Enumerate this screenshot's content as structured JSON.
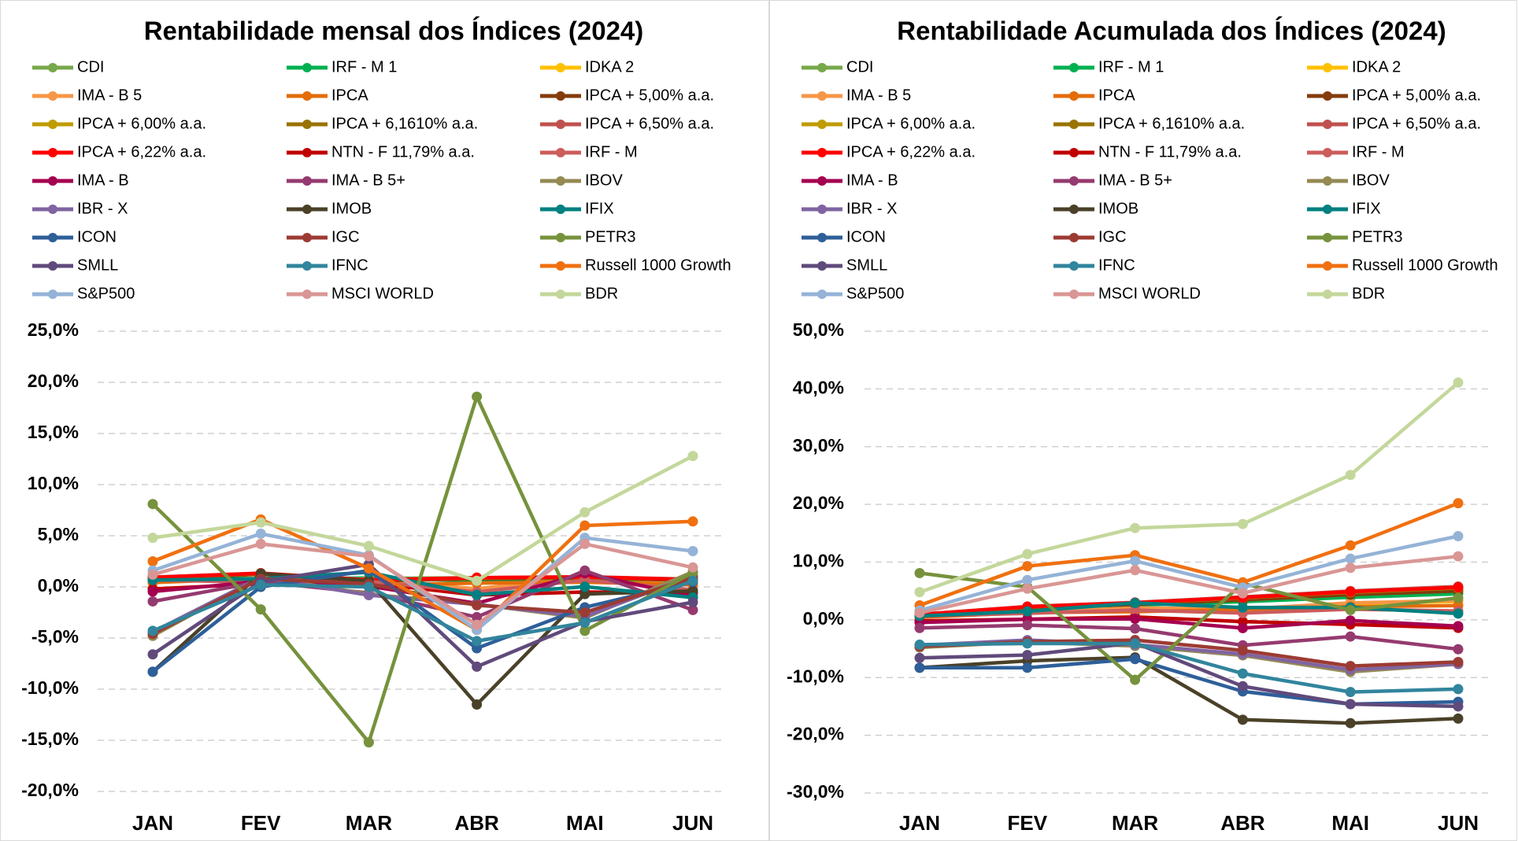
{
  "chart_data": [
    {
      "type": "line",
      "title": "Rentabilidade mensal dos Índices (2024)",
      "categories": [
        "JAN",
        "FEV",
        "MAR",
        "ABR",
        "MAI",
        "JUN"
      ],
      "ylim": [
        -20,
        25
      ],
      "yticks": [
        {
          "value": -20,
          "label": "-20,0%"
        },
        {
          "value": -15,
          "label": "-15,0%"
        },
        {
          "value": -10,
          "label": "-10,0%"
        },
        {
          "value": -5,
          "label": "-5,0%"
        },
        {
          "value": 0,
          "label": "0,0%"
        },
        {
          "value": 5,
          "label": "5,0%"
        },
        {
          "value": 10,
          "label": "10,0%"
        },
        {
          "value": 15,
          "label": "15,0%"
        },
        {
          "value": 20,
          "label": "20,0%"
        },
        {
          "value": 25,
          "label": "25,0%"
        }
      ],
      "grid": true,
      "series": [
        {
          "name": "CDI",
          "color": "#77a84a",
          "values": [
            0.97,
            0.8,
            0.83,
            0.89,
            0.83,
            0.79
          ]
        },
        {
          "name": "IRF - M 1",
          "color": "#00b050",
          "values": [
            0.85,
            0.79,
            0.87,
            0.6,
            0.72,
            0.6
          ]
        },
        {
          "name": "IDKA 2",
          "color": "#ffc000",
          "values": [
            0.6,
            0.8,
            0.6,
            -0.2,
            1.0,
            0.4
          ]
        },
        {
          "name": "IMA - B 5",
          "color": "#f79646",
          "values": [
            0.68,
            0.59,
            0.77,
            -0.2,
            1.05,
            0.39
          ]
        },
        {
          "name": "IPCA",
          "color": "#e46c0a",
          "values": [
            0.42,
            0.83,
            0.16,
            0.38,
            0.46,
            0.21
          ]
        },
        {
          "name": "IPCA + 5,00% a.a.",
          "color": "#843c0c",
          "values": [
            0.83,
            1.23,
            0.57,
            0.79,
            0.87,
            0.62
          ]
        },
        {
          "name": "IPCA + 6,00% a.a.",
          "color": "#c09b00",
          "values": [
            0.91,
            1.31,
            0.65,
            0.87,
            0.95,
            0.7
          ]
        },
        {
          "name": "IPCA + 6,1610% a.a.",
          "color": "#997300",
          "values": [
            0.92,
            1.32,
            0.66,
            0.88,
            0.96,
            0.71
          ]
        },
        {
          "name": "IPCA + 6,50% a.a.",
          "color": "#c0504d",
          "values": [
            0.95,
            1.35,
            0.69,
            0.91,
            0.99,
            0.74
          ]
        },
        {
          "name": "IPCA + 6,22% a.a.",
          "color": "#ff0000",
          "values": [
            0.93,
            1.33,
            0.67,
            0.89,
            0.97,
            0.72
          ]
        },
        {
          "name": "NTN - F 11,79% a.a.",
          "color": "#c00000",
          "values": [
            -0.2,
            0.3,
            0.4,
            -0.8,
            -0.5,
            -0.6
          ]
        },
        {
          "name": "IRF - M",
          "color": "#cd5c5c",
          "values": [
            0.67,
            0.46,
            0.54,
            -0.5,
            0.66,
            -0.3
          ]
        },
        {
          "name": "IMA - B",
          "color": "#a50050",
          "values": [
            -0.45,
            0.55,
            0.08,
            -1.61,
            1.33,
            -0.97
          ]
        },
        {
          "name": "IMA - B 5+",
          "color": "#953a6f",
          "values": [
            -1.42,
            0.51,
            -0.6,
            -2.95,
            1.6,
            -2.26
          ]
        },
        {
          "name": "IBOV",
          "color": "#948a54",
          "values": [
            -4.79,
            0.99,
            -0.71,
            -1.7,
            -3.04,
            1.48
          ]
        },
        {
          "name": "IBR - X",
          "color": "#8064a2",
          "values": [
            -4.4,
            0.93,
            -0.81,
            -1.71,
            -2.9,
            1.1
          ]
        },
        {
          "name": "IMOB",
          "color": "#4a4128",
          "values": [
            -8.3,
            1.3,
            0.6,
            -11.5,
            -0.7,
            -0.4
          ]
        },
        {
          "name": "IFIX",
          "color": "#008080",
          "values": [
            0.67,
            0.79,
            1.43,
            -0.77,
            0.02,
            -1.04
          ]
        },
        {
          "name": "ICON",
          "color": "#2e5f99",
          "values": [
            -8.3,
            0.0,
            1.6,
            -6.0,
            -2.0,
            0.5
          ]
        },
        {
          "name": "IGC",
          "color": "#9c3b33",
          "values": [
            -4.6,
            0.8,
            0.3,
            -1.8,
            -2.5,
            0.9
          ]
        },
        {
          "name": "PETR3",
          "color": "#76923c",
          "values": [
            8.1,
            -2.2,
            -15.2,
            18.6,
            -4.3,
            1.4
          ]
        },
        {
          "name": "SMLL",
          "color": "#604a7b",
          "values": [
            -6.6,
            0.5,
            2.2,
            -7.8,
            -3.4,
            -1.5
          ]
        },
        {
          "name": "IFNC",
          "color": "#31859c",
          "values": [
            -4.3,
            0.2,
            0.0,
            -5.3,
            -3.5,
            0.6
          ]
        },
        {
          "name": "Russell 1000 Growth",
          "color": "#f07010",
          "values": [
            2.5,
            6.6,
            1.8,
            -4.2,
            6.0,
            6.4
          ]
        },
        {
          "name": "S&P500",
          "color": "#95b3d7",
          "values": [
            1.6,
            5.2,
            3.1,
            -4.2,
            4.8,
            3.5
          ]
        },
        {
          "name": "MSCI WORLD",
          "color": "#d99694",
          "values": [
            1.2,
            4.2,
            3.0,
            -3.7,
            4.2,
            1.9
          ]
        },
        {
          "name": "BDR",
          "color": "#c4d79b",
          "values": [
            4.8,
            6.3,
            4.0,
            0.6,
            7.3,
            12.8
          ]
        }
      ]
    },
    {
      "type": "line",
      "title": "Rentabilidade Acumulada dos Índices (2024)",
      "categories": [
        "JAN",
        "FEV",
        "MAR",
        "ABR",
        "MAI",
        "JUN"
      ],
      "ylim": [
        -30,
        50
      ],
      "yticks": [
        {
          "value": -30,
          "label": "-30,0%"
        },
        {
          "value": -20,
          "label": "-20,0%"
        },
        {
          "value": -10,
          "label": "-10,0%"
        },
        {
          "value": 0,
          "label": "0,0%"
        },
        {
          "value": 10,
          "label": "10,0%"
        },
        {
          "value": 20,
          "label": "20,0%"
        },
        {
          "value": 30,
          "label": "30,0%"
        },
        {
          "value": 40,
          "label": "40,0%"
        },
        {
          "value": 50,
          "label": "50,0%"
        }
      ],
      "grid": true,
      "series": [
        {
          "name": "CDI",
          "color": "#77a84a",
          "values": [
            0.97,
            1.78,
            2.62,
            3.54,
            4.4,
            5.22
          ]
        },
        {
          "name": "IRF - M 1",
          "color": "#00b050",
          "values": [
            0.85,
            1.65,
            2.53,
            3.15,
            3.89,
            4.51
          ]
        },
        {
          "name": "IDKA 2",
          "color": "#ffc000",
          "values": [
            0.6,
            1.4,
            2.0,
            1.8,
            2.8,
            3.2
          ]
        },
        {
          "name": "IMA - B 5",
          "color": "#f79646",
          "values": [
            0.68,
            1.27,
            2.06,
            1.86,
            2.93,
            3.33
          ]
        },
        {
          "name": "IPCA",
          "color": "#e46c0a",
          "values": [
            0.42,
            1.25,
            1.41,
            1.8,
            2.27,
            2.48
          ]
        },
        {
          "name": "IPCA + 5,00% a.a.",
          "color": "#843c0c",
          "values": [
            0.83,
            2.07,
            2.65,
            3.46,
            4.36,
            5.01
          ]
        },
        {
          "name": "IPCA + 6,00% a.a.",
          "color": "#c09b00",
          "values": [
            0.91,
            2.23,
            2.9,
            3.8,
            4.79,
            5.52
          ]
        },
        {
          "name": "IPCA + 6,1610% a.a.",
          "color": "#997300",
          "values": [
            0.92,
            2.25,
            2.92,
            3.83,
            4.83,
            5.57
          ]
        },
        {
          "name": "IPCA + 6,50% a.a.",
          "color": "#c0504d",
          "values": [
            0.95,
            2.31,
            3.02,
            3.96,
            4.99,
            5.77
          ]
        },
        {
          "name": "IPCA + 6,22% a.a.",
          "color": "#ff0000",
          "values": [
            0.93,
            2.27,
            2.95,
            3.87,
            4.88,
            5.63
          ]
        },
        {
          "name": "NTN - F 11,79% a.a.",
          "color": "#c00000",
          "values": [
            -0.2,
            0.1,
            0.5,
            -0.3,
            -0.8,
            -1.4
          ]
        },
        {
          "name": "IRF - M",
          "color": "#cd5c5c",
          "values": [
            0.67,
            1.13,
            1.68,
            1.17,
            1.84,
            1.53
          ]
        },
        {
          "name": "IMA - B",
          "color": "#a50050",
          "values": [
            -0.45,
            0.1,
            0.18,
            -1.43,
            -0.12,
            -1.09
          ]
        },
        {
          "name": "IMA - B 5+",
          "color": "#953a6f",
          "values": [
            -1.42,
            -0.92,
            -1.52,
            -4.42,
            -2.89,
            -5.09
          ]
        },
        {
          "name": "IBOV",
          "color": "#948a54",
          "values": [
            -4.79,
            -3.85,
            -4.53,
            -6.16,
            -9.01,
            -7.66
          ]
        },
        {
          "name": "IBR - X",
          "color": "#8064a2",
          "values": [
            -4.4,
            -3.51,
            -4.29,
            -5.93,
            -8.66,
            -7.65
          ]
        },
        {
          "name": "IMOB",
          "color": "#4a4128",
          "values": [
            -8.3,
            -7.1,
            -6.5,
            -17.3,
            -17.9,
            -17.1
          ]
        },
        {
          "name": "IFIX",
          "color": "#008080",
          "values": [
            0.67,
            1.47,
            2.92,
            2.13,
            2.15,
            1.09
          ]
        },
        {
          "name": "ICON",
          "color": "#2e5f99",
          "values": [
            -8.3,
            -8.3,
            -6.8,
            -12.4,
            -14.6,
            -14.2
          ]
        },
        {
          "name": "IGC",
          "color": "#9c3b33",
          "values": [
            -4.6,
            -3.8,
            -3.5,
            -5.3,
            -8.0,
            -7.3
          ]
        },
        {
          "name": "PETR3",
          "color": "#76923c",
          "values": [
            8.1,
            5.7,
            -10.4,
            6.3,
            1.7,
            3.8
          ]
        },
        {
          "name": "SMLL",
          "color": "#604a7b",
          "values": [
            -6.6,
            -6.1,
            -4.0,
            -11.5,
            -14.6,
            -15.0
          ]
        },
        {
          "name": "IFNC",
          "color": "#31859c",
          "values": [
            -4.3,
            -4.1,
            -4.1,
            -9.3,
            -12.5,
            -12.0
          ]
        },
        {
          "name": "Russell 1000 Growth",
          "color": "#f07010",
          "values": [
            2.5,
            9.3,
            11.2,
            6.5,
            12.9,
            20.2
          ]
        },
        {
          "name": "S&P500",
          "color": "#95b3d7",
          "values": [
            1.6,
            6.9,
            10.2,
            5.6,
            10.6,
            14.5
          ]
        },
        {
          "name": "MSCI WORLD",
          "color": "#d99694",
          "values": [
            1.2,
            5.4,
            8.6,
            4.6,
            9.0,
            11.0
          ]
        },
        {
          "name": "BDR",
          "color": "#c4d79b",
          "values": [
            4.8,
            11.4,
            15.9,
            16.6,
            25.1,
            41.1
          ]
        }
      ]
    }
  ]
}
